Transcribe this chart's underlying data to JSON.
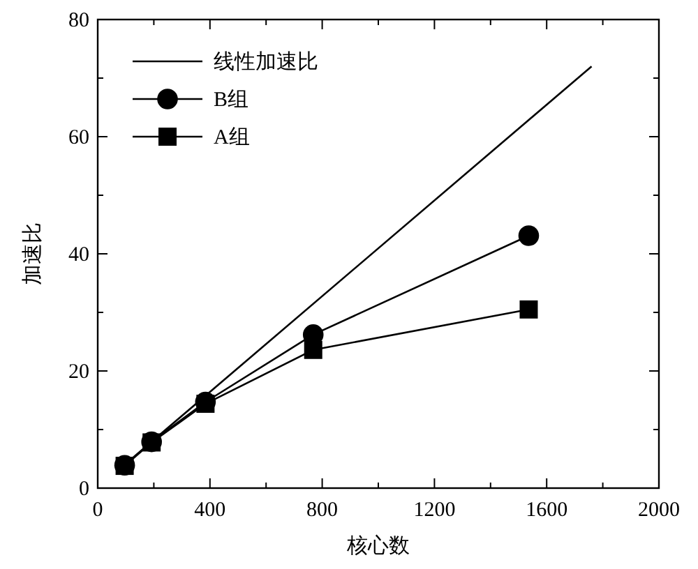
{
  "chart_data": {
    "type": "line",
    "xlabel": "核心数",
    "ylabel": "加速比",
    "xlim": [
      0,
      2000
    ],
    "ylim": [
      0,
      80
    ],
    "xticks": [
      0,
      {
        "value": 200,
        "label": null
      },
      400,
      {
        "value": 600,
        "label": null
      },
      800,
      {
        "value": 1000,
        "label": null
      },
      1200,
      {
        "value": 1400,
        "label": null
      },
      1600,
      {
        "value": 1800,
        "label": null
      },
      2000
    ],
    "yticks": [
      0,
      {
        "value": 10,
        "label": null
      },
      20,
      {
        "value": 30,
        "label": null
      },
      40,
      {
        "value": 50,
        "label": null
      },
      60,
      {
        "value": 70,
        "label": null
      },
      80
    ],
    "grid": false,
    "legend": "top left",
    "series": [
      {
        "name": "线性加速比",
        "color": "#000000",
        "x": [
          96,
          1760
        ],
        "values": [
          4,
          72
        ],
        "marker": "none"
      },
      {
        "name": "B组",
        "color": "#000000",
        "x": [
          96,
          192,
          384,
          768,
          1536
        ],
        "values": [
          3.9,
          7.9,
          14.7,
          26.2,
          43.1
        ],
        "marker": "circle"
      },
      {
        "name": "A组",
        "color": "#000000",
        "x": [
          96,
          192,
          384,
          768,
          1536
        ],
        "values": [
          3.8,
          7.8,
          14.4,
          23.6,
          30.5
        ],
        "marker": "square"
      }
    ]
  }
}
